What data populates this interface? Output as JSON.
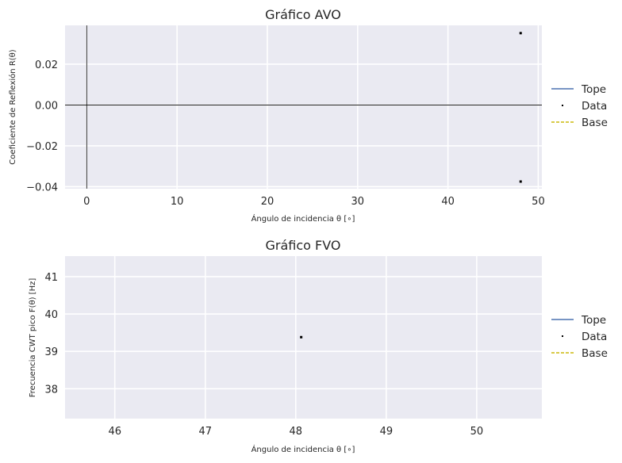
{
  "colors": {
    "plot_bg": "#eaeaf2",
    "grid": "#ffffff",
    "tope": "#4c72b0",
    "base": "#ccb90c",
    "data": "#000000",
    "zero_line": "#000000"
  },
  "chart_data": [
    {
      "id": "avo",
      "type": "scatter",
      "title": "Gráfico AVO",
      "xlabel": "Ángulo de incidencia θ [∘]",
      "ylabel": "Coeficiente de Reflexión R(θ)",
      "xlim": [
        -2.4,
        50.4
      ],
      "ylim": [
        -0.041,
        0.039
      ],
      "xticks": [
        0,
        10,
        20,
        30,
        40,
        50
      ],
      "xtick_labels": [
        "0",
        "10",
        "20",
        "30",
        "40",
        "50"
      ],
      "yticks": [
        -0.04,
        -0.02,
        0.0,
        0.02
      ],
      "ytick_labels": [
        "−0.04",
        "−0.02",
        "0.00",
        "0.02"
      ],
      "zero_lines": true,
      "grid": true,
      "legend_position": "right",
      "series": [
        {
          "name": "Tope",
          "style": "line",
          "x": [],
          "y": []
        },
        {
          "name": "Data",
          "style": "marker",
          "x": [
            48.05,
            48.05
          ],
          "y": [
            0.0352,
            -0.0375
          ]
        },
        {
          "name": "Base",
          "style": "dashed",
          "x": [],
          "y": []
        }
      ]
    },
    {
      "id": "fvo",
      "type": "scatter",
      "title": "Gráfico FVO",
      "xlabel": "Ángulo de incidencia θ [∘]",
      "ylabel": "Frecuencia CWT pico F(θ) [Hz]",
      "xlim": [
        45.45,
        50.72
      ],
      "ylim": [
        37.2,
        41.55
      ],
      "xticks": [
        46,
        47,
        48,
        49,
        50
      ],
      "xtick_labels": [
        "46",
        "47",
        "48",
        "49",
        "50"
      ],
      "yticks": [
        38,
        39,
        40,
        41
      ],
      "ytick_labels": [
        "38",
        "39",
        "40",
        "41"
      ],
      "zero_lines": false,
      "grid": true,
      "legend_position": "right",
      "series": [
        {
          "name": "Tope",
          "style": "line",
          "x": [],
          "y": []
        },
        {
          "name": "Data",
          "style": "marker",
          "x": [
            48.06
          ],
          "y": [
            39.38
          ]
        },
        {
          "name": "Base",
          "style": "dashed",
          "x": [],
          "y": []
        }
      ]
    }
  ]
}
